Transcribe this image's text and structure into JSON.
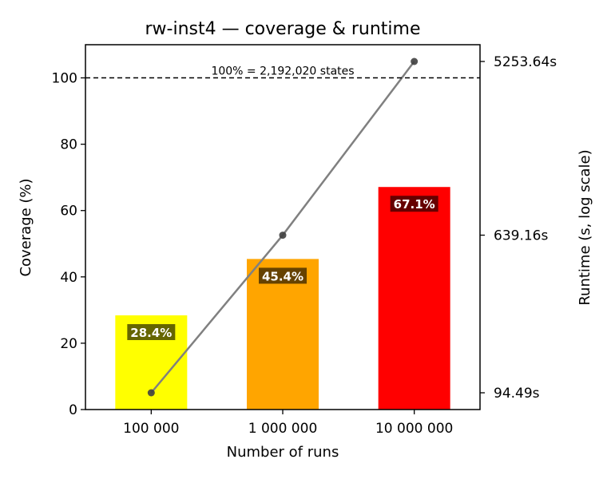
{
  "chart_data": {
    "type": "bar",
    "title": "rw-inst4 — coverage & runtime",
    "xlabel": "Number of runs",
    "ylabel": "Coverage (%)",
    "ylabel_right": "Runtime (s, log scale)",
    "categories": [
      "100 000",
      "1 000 000",
      "10 000 000"
    ],
    "values": [
      28.4,
      45.4,
      67.1
    ],
    "value_labels": [
      "28.4%",
      "45.4%",
      "67.1%"
    ],
    "bar_colors": [
      "#ffff00",
      "#ffa500",
      "#ff0000"
    ],
    "label_bg_colors": [
      "#666600",
      "#664200",
      "#660000"
    ],
    "ylim": [
      0,
      110
    ],
    "yticks": [
      0,
      20,
      40,
      60,
      80,
      100
    ],
    "reference_line": {
      "value": 100,
      "label": "100% = 2,192,020 states"
    },
    "runtime": {
      "scale": "log",
      "values": [
        94.49,
        639.16,
        5253.64
      ],
      "tick_labels": [
        "94.49s",
        "639.16s",
        "5253.64s"
      ],
      "color": "#808080"
    }
  }
}
